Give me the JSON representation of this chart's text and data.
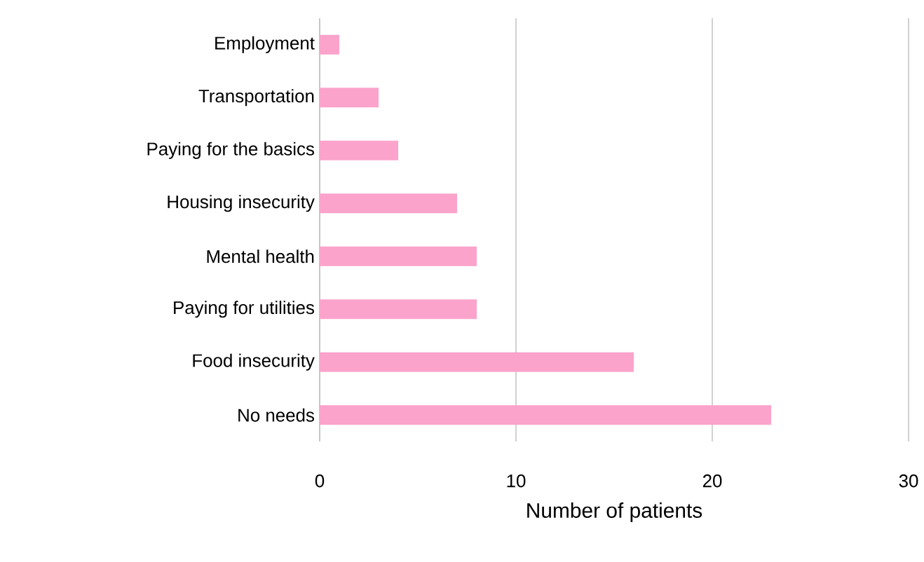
{
  "chart_data": {
    "type": "bar",
    "orientation": "horizontal",
    "categories": [
      "Employment",
      "Transportation",
      "Paying for the basics",
      "Housing insecurity",
      "Mental health",
      "Paying for utilities",
      "Food insecurity",
      "No needs"
    ],
    "values": [
      1,
      3,
      4,
      7,
      8,
      8,
      16,
      23
    ],
    "color": "#fba3cb",
    "xlabel": "Number of patients",
    "xlim": [
      0,
      30
    ],
    "xticks": [
      0,
      10,
      20,
      30
    ],
    "grid": "x"
  }
}
